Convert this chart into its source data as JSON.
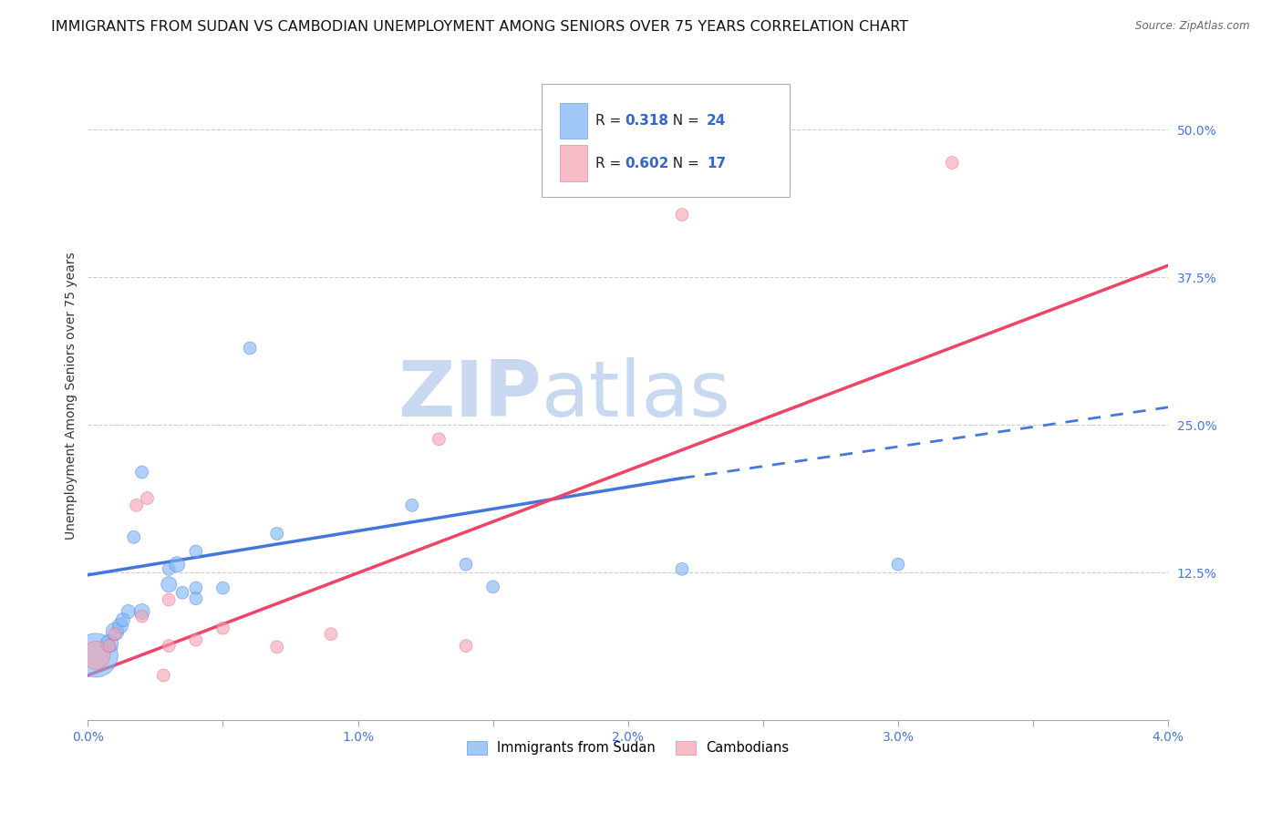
{
  "title": "IMMIGRANTS FROM SUDAN VS CAMBODIAN UNEMPLOYMENT AMONG SENIORS OVER 75 YEARS CORRELATION CHART",
  "source": "Source: ZipAtlas.com",
  "xlabel_blue": "Immigrants from Sudan",
  "xlabel_pink": "Cambodians",
  "ylabel": "Unemployment Among Seniors over 75 years",
  "xlim": [
    0.0,
    0.04
  ],
  "ylim": [
    0.0,
    0.55
  ],
  "yticks": [
    0.125,
    0.25,
    0.375,
    0.5
  ],
  "ytick_labels": [
    "12.5%",
    "25.0%",
    "37.5%",
    "50.0%"
  ],
  "xticks": [
    0.0,
    0.005,
    0.01,
    0.015,
    0.02,
    0.025,
    0.03,
    0.035,
    0.04
  ],
  "xtick_labels": [
    "0.0%",
    "",
    "1.0%",
    "",
    "2.0%",
    "",
    "3.0%",
    "",
    "4.0%"
  ],
  "grid_color": "#cccccc",
  "background_color": "#ffffff",
  "legend_R_blue": "0.318",
  "legend_N_blue": "24",
  "legend_R_pink": "0.602",
  "legend_N_pink": "17",
  "blue_color": "#7ab3f5",
  "pink_color": "#f5a0b0",
  "blue_edge_color": "#4477dd",
  "pink_edge_color": "#dd6688",
  "blue_line_color": "#4477dd",
  "pink_line_color": "#ee4466",
  "blue_scatter": [
    [
      0.0003,
      0.055
    ],
    [
      0.0008,
      0.065
    ],
    [
      0.001,
      0.075
    ],
    [
      0.0012,
      0.08
    ],
    [
      0.0013,
      0.085
    ],
    [
      0.0015,
      0.092
    ],
    [
      0.002,
      0.092
    ],
    [
      0.0017,
      0.155
    ],
    [
      0.002,
      0.21
    ],
    [
      0.003,
      0.115
    ],
    [
      0.003,
      0.128
    ],
    [
      0.0033,
      0.132
    ],
    [
      0.0035,
      0.108
    ],
    [
      0.004,
      0.112
    ],
    [
      0.004,
      0.103
    ],
    [
      0.004,
      0.143
    ],
    [
      0.005,
      0.112
    ],
    [
      0.006,
      0.315
    ],
    [
      0.007,
      0.158
    ],
    [
      0.012,
      0.182
    ],
    [
      0.014,
      0.132
    ],
    [
      0.015,
      0.113
    ],
    [
      0.022,
      0.128
    ],
    [
      0.03,
      0.132
    ]
  ],
  "blue_sizes": [
    1200,
    200,
    200,
    150,
    120,
    120,
    150,
    100,
    100,
    150,
    100,
    150,
    100,
    100,
    100,
    100,
    100,
    100,
    100,
    100,
    100,
    100,
    100,
    100
  ],
  "pink_scatter": [
    [
      0.0003,
      0.055
    ],
    [
      0.0008,
      0.063
    ],
    [
      0.001,
      0.073
    ],
    [
      0.002,
      0.088
    ],
    [
      0.0018,
      0.182
    ],
    [
      0.0022,
      0.188
    ],
    [
      0.003,
      0.063
    ],
    [
      0.0028,
      0.038
    ],
    [
      0.003,
      0.102
    ],
    [
      0.004,
      0.068
    ],
    [
      0.005,
      0.078
    ],
    [
      0.007,
      0.062
    ],
    [
      0.009,
      0.073
    ],
    [
      0.013,
      0.238
    ],
    [
      0.014,
      0.063
    ],
    [
      0.022,
      0.428
    ],
    [
      0.032,
      0.472
    ]
  ],
  "pink_sizes": [
    500,
    100,
    100,
    100,
    100,
    100,
    100,
    100,
    100,
    100,
    100,
    100,
    100,
    100,
    100,
    100,
    100
  ],
  "blue_solid_line": {
    "x0": 0.0,
    "x1": 0.022,
    "y0": 0.123,
    "y1": 0.205
  },
  "blue_dashed_line": {
    "x0": 0.022,
    "x1": 0.04,
    "y0": 0.205,
    "y1": 0.265
  },
  "pink_solid_line": {
    "x0": 0.0,
    "x1": 0.04,
    "y0": 0.038,
    "y1": 0.385
  },
  "watermark_left": "ZIP",
  "watermark_right": "atlas",
  "watermark_color": "#c8d8f0",
  "title_fontsize": 11.5,
  "label_fontsize": 10,
  "tick_fontsize": 10
}
